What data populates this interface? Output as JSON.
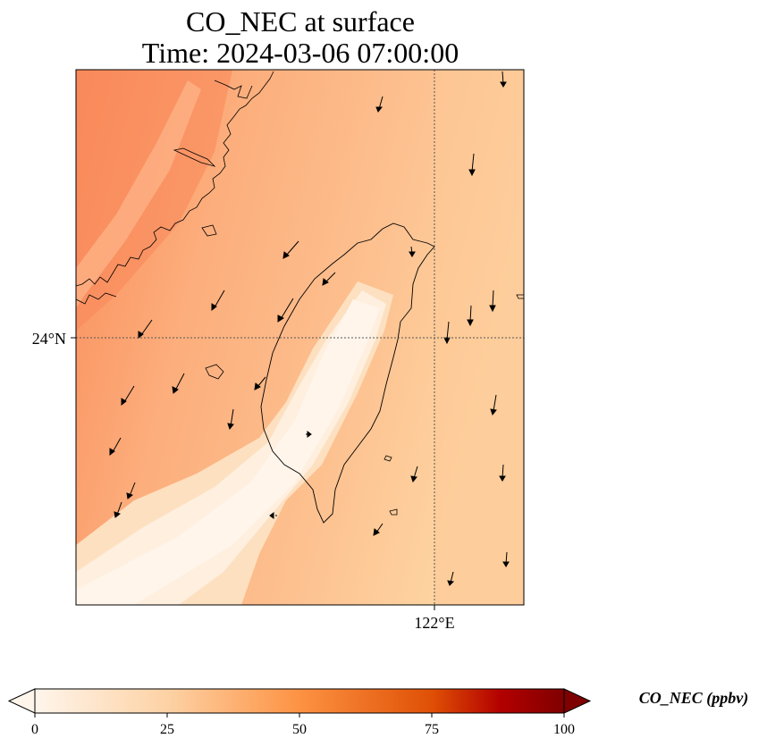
{
  "title": "CO_NEC at surface",
  "subtitle": "Time: 2024-03-06 07:00:00",
  "axes": {
    "lat_label": "24°N",
    "lon_label": "122°E"
  },
  "colorbar": {
    "label": "CO_NEC (ppbv)",
    "ticks": [
      "0",
      "25",
      "50",
      "75",
      "100"
    ],
    "colors": [
      "#fff5eb",
      "#fdd2a5",
      "#fd9243",
      "#df5005",
      "#7f2704"
    ]
  },
  "colors": {
    "land_outline": "#000000",
    "gridline": "#555555",
    "wind_vector": "#000000"
  }
}
